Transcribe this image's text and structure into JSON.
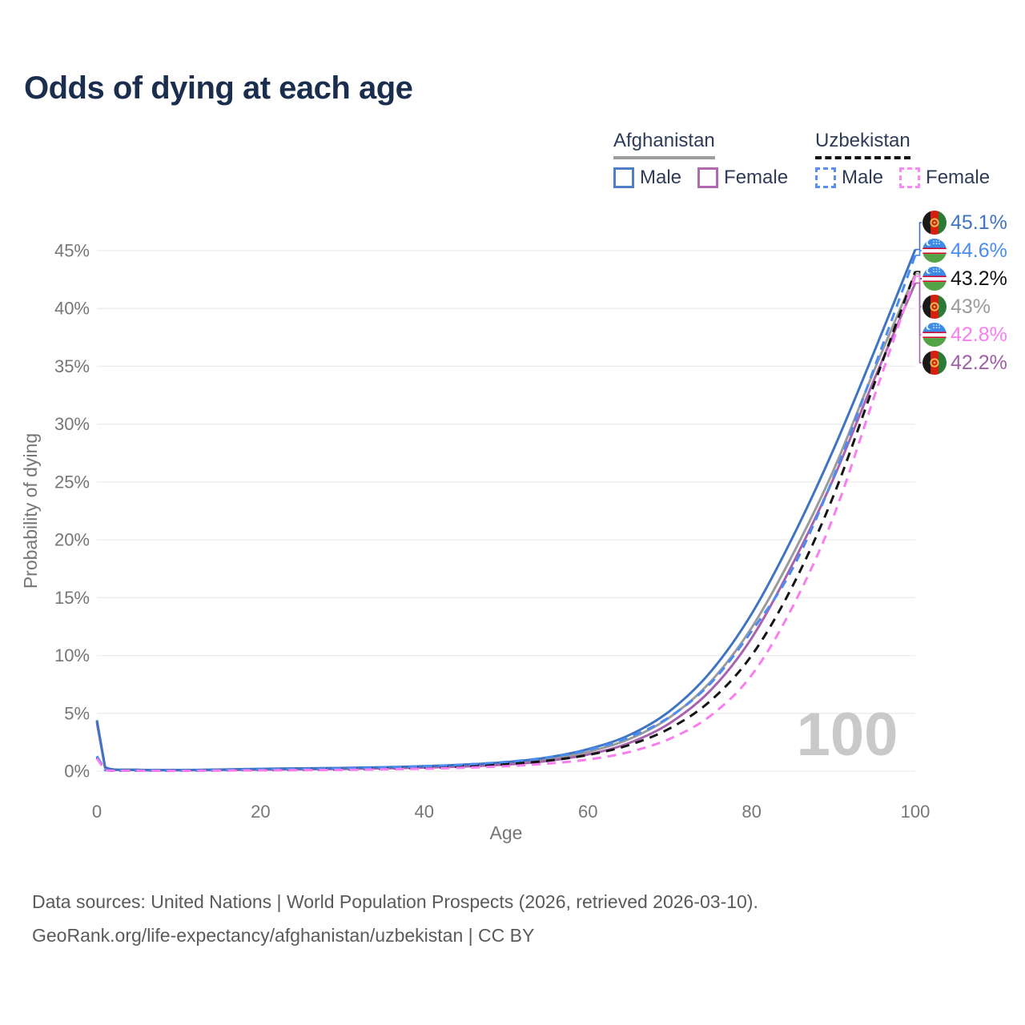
{
  "title": "Odds of dying at each age",
  "legend": {
    "groups": [
      {
        "label": "Afghanistan",
        "underline_style": "solid",
        "underline_color": "#9e9e9e",
        "items": [
          {
            "label": "Male",
            "color": "#4e7fc6",
            "dashed": false
          },
          {
            "label": "Female",
            "color": "#b168b1",
            "dashed": false
          }
        ]
      },
      {
        "label": "Uzbekistan",
        "underline_style": "dashed",
        "underline_color": "#141414",
        "items": [
          {
            "label": "Male",
            "color": "#5a8ff0",
            "dashed": true
          },
          {
            "label": "Female",
            "color": "#fc86f2",
            "dashed": true
          }
        ]
      }
    ]
  },
  "watermark": "100",
  "footer": {
    "source_line": "Data sources: United Nations | World Population Prospects (2026, retrieved 2026-03-10).",
    "attribution_line": "GeoRank.org/life-expectancy/afghanistan/uzbekistan | CC BY"
  },
  "chart_data": {
    "type": "line",
    "title": "Odds of dying at each age",
    "xlabel": "Age",
    "ylabel": "Probability of dying",
    "x_ticks": [
      0,
      20,
      40,
      60,
      80,
      100
    ],
    "y_ticks_percent": [
      0,
      5,
      10,
      15,
      20,
      25,
      30,
      35,
      40,
      45
    ],
    "xlim": [
      0,
      100
    ],
    "ylim_percent": [
      0,
      46
    ],
    "grid": true,
    "legend_position": "top-right",
    "ages": [
      0,
      1,
      5,
      10,
      15,
      20,
      25,
      30,
      35,
      40,
      45,
      50,
      55,
      60,
      65,
      70,
      75,
      80,
      85,
      90,
      95,
      100
    ],
    "series": [
      {
        "name": "Afghanistan Male",
        "country": "Afghanistan",
        "sex": "Male",
        "style": "solid",
        "color": "#3e74c2",
        "flag": "afghanistan-flag-icon",
        "end_label": "45.1%",
        "end_value_percent": 45.1,
        "end_label_color": "#3e74c2",
        "values_percent": [
          4.4,
          0.35,
          0.12,
          0.1,
          0.14,
          0.2,
          0.24,
          0.28,
          0.34,
          0.43,
          0.57,
          0.78,
          1.18,
          1.9,
          3.1,
          5.2,
          8.6,
          13.6,
          20.2,
          27.8,
          36.3,
          45.1
        ]
      },
      {
        "name": "Uzbekistan Male",
        "country": "Uzbekistan",
        "sex": "Male",
        "style": "dashed",
        "color": "#4a8cf2",
        "flag": "uzbekistan-flag-icon",
        "end_label": "44.6%",
        "end_value_percent": 44.6,
        "end_label_color": "#4a8cf2",
        "values_percent": [
          1.3,
          0.1,
          0.05,
          0.05,
          0.09,
          0.14,
          0.18,
          0.23,
          0.31,
          0.42,
          0.57,
          0.8,
          1.18,
          1.82,
          2.92,
          4.7,
          7.6,
          12.1,
          17.5,
          25.4,
          34.9,
          44.6
        ]
      },
      {
        "name": "Uzbekistan",
        "country": "Uzbekistan",
        "sex": "Both",
        "style": "dashed",
        "color": "#141414",
        "flag": "uzbekistan-flag-icon",
        "end_label": "43.2%",
        "end_value_percent": 43.2,
        "end_label_color": "#141414",
        "values_percent": [
          1.2,
          0.09,
          0.04,
          0.04,
          0.07,
          0.1,
          0.13,
          0.16,
          0.22,
          0.3,
          0.42,
          0.6,
          0.9,
          1.4,
          2.25,
          3.7,
          6.1,
          10.0,
          16.0,
          23.8,
          33.5,
          43.2
        ]
      },
      {
        "name": "Afghanistan",
        "country": "Afghanistan",
        "sex": "Both",
        "style": "solid",
        "color": "#9b9b9b",
        "flag": "afghanistan-flag-icon",
        "end_label": "43%",
        "end_value_percent": 43.0,
        "end_label_color": "#9b9b9b",
        "values_percent": [
          4.3,
          0.33,
          0.11,
          0.09,
          0.12,
          0.17,
          0.2,
          0.24,
          0.29,
          0.37,
          0.49,
          0.67,
          1.02,
          1.66,
          2.76,
          4.65,
          7.75,
          12.4,
          18.7,
          26.0,
          34.7,
          43.0
        ]
      },
      {
        "name": "Uzbekistan Female",
        "country": "Uzbekistan",
        "sex": "Female",
        "style": "dashed",
        "color": "#fa7df0",
        "flag": "uzbekistan-flag-icon",
        "end_label": "42.8%",
        "end_value_percent": 42.8,
        "end_label_color": "#fa7df0",
        "values_percent": [
          1.1,
          0.08,
          0.04,
          0.03,
          0.05,
          0.07,
          0.09,
          0.11,
          0.15,
          0.21,
          0.3,
          0.43,
          0.65,
          1.0,
          1.65,
          2.8,
          4.8,
          8.3,
          14.2,
          22.0,
          32.4,
          42.8
        ]
      },
      {
        "name": "Afghanistan Female",
        "country": "Afghanistan",
        "sex": "Female",
        "style": "solid",
        "color": "#a963ae",
        "flag": "afghanistan-flag-icon",
        "end_label": "42.2%",
        "end_value_percent": 42.2,
        "end_label_color": "#a05fa8",
        "values_percent": [
          4.2,
          0.3,
          0.1,
          0.08,
          0.1,
          0.13,
          0.16,
          0.19,
          0.24,
          0.31,
          0.41,
          0.57,
          0.87,
          1.44,
          2.42,
          4.15,
          7.0,
          11.5,
          17.9,
          25.3,
          33.9,
          42.2
        ]
      }
    ]
  }
}
